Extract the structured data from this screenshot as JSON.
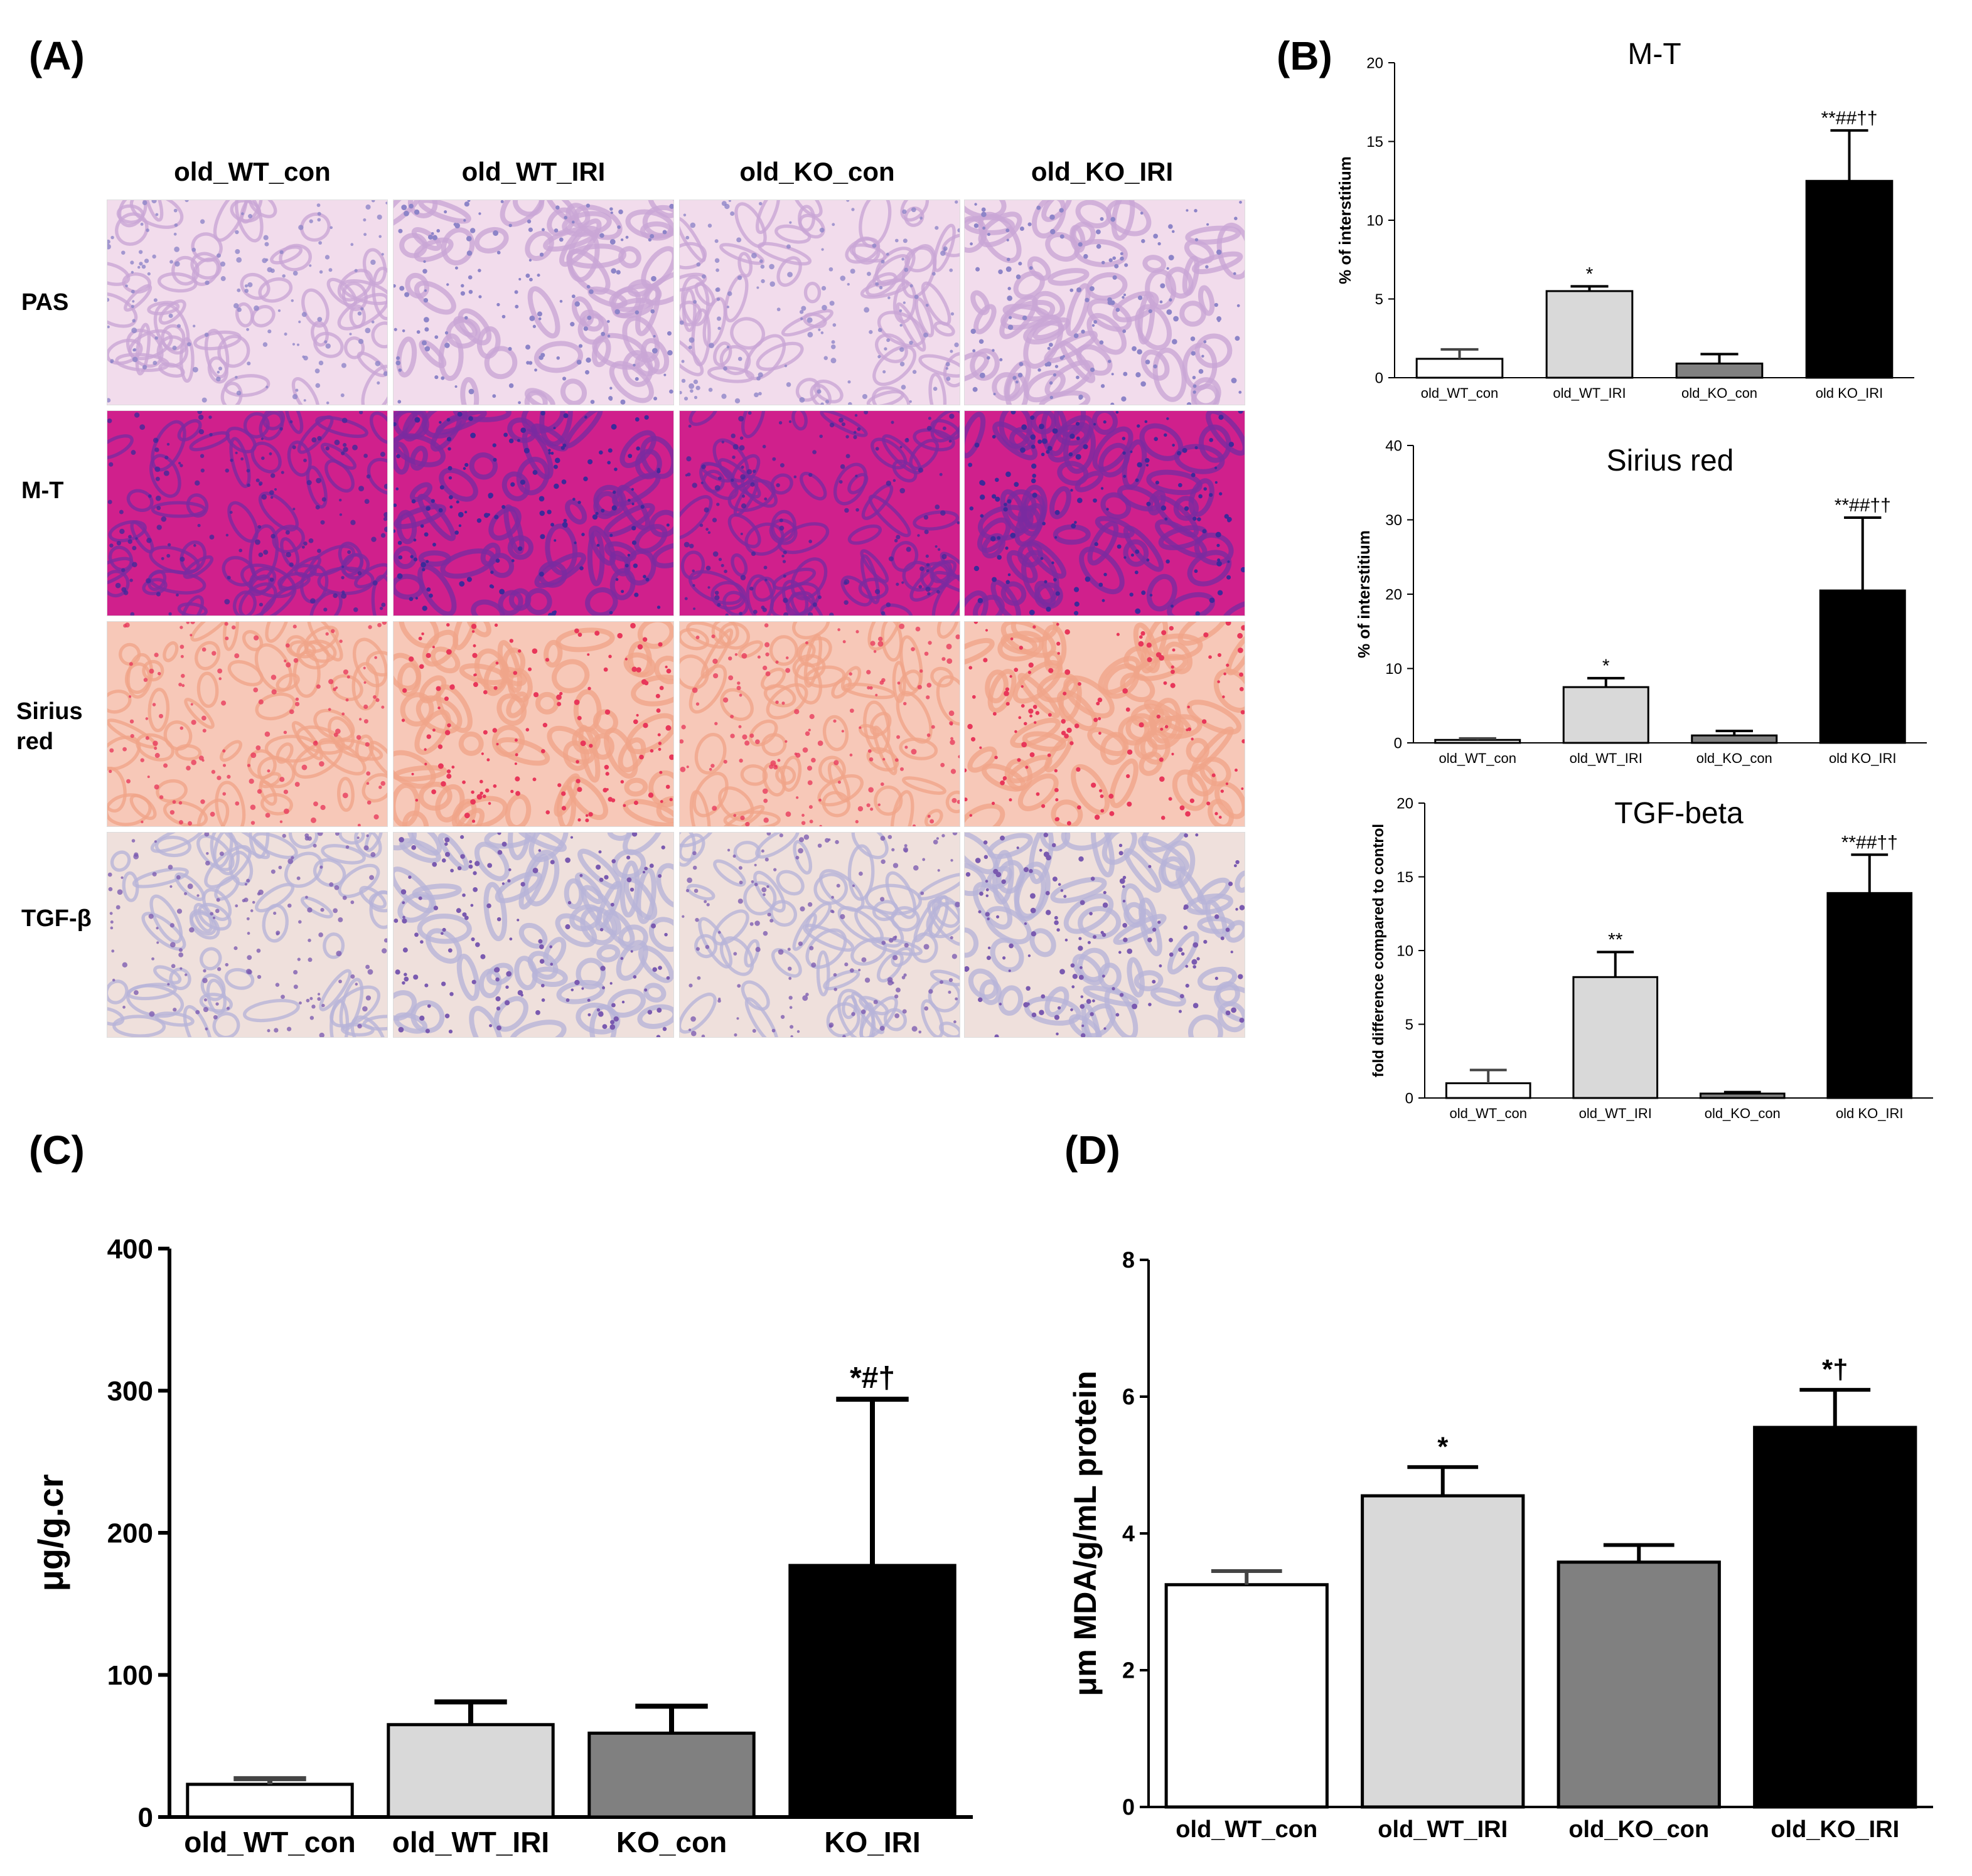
{
  "labels": {
    "a": "(A)",
    "b": "(B)",
    "c": "(C)",
    "d": "(D)"
  },
  "panelA": {
    "columns": [
      "old_WT_con",
      "old_WT_IRI",
      "old_KO_con",
      "old_KO_IRI"
    ],
    "rows": [
      {
        "label": "PAS",
        "tissue": "pas"
      },
      {
        "label": "M-T",
        "tissue": "mt"
      },
      {
        "label": "Sirius red",
        "tissue": "sirius"
      },
      {
        "label": "TGF-β",
        "tissue": "tgf"
      }
    ],
    "colors": {
      "pas": [
        "#f2dcec",
        "#c9a6d6",
        "#8d84c8"
      ],
      "mt": [
        "#d0208c",
        "#7a2aa0",
        "#3c2a9a"
      ],
      "sirius": [
        "#f7c8b8",
        "#f0a58a",
        "#e8375a"
      ],
      "tgf": [
        "#efe0dc",
        "#b8b4d8",
        "#7a5ab0"
      ]
    }
  },
  "chart_data": [
    {
      "id": "B1",
      "type": "bar",
      "title": "M-T",
      "ylabel": "% of interstitium",
      "xlabel": "",
      "ylim": [
        0,
        20
      ],
      "yticks": [
        0,
        5,
        10,
        15,
        20
      ],
      "categories": [
        "old_WT_con",
        "old_WT_IRI",
        "old_KO_con",
        "old KO_IRI"
      ],
      "values": [
        1.2,
        5.5,
        0.9,
        12.5
      ],
      "errors": [
        0.6,
        0.3,
        0.6,
        3.2
      ],
      "annotations": [
        "",
        "*",
        "",
        "**##††"
      ],
      "fills": [
        "#ffffff",
        "#d9d9d9",
        "#808080",
        "#000000"
      ]
    },
    {
      "id": "B2",
      "type": "bar",
      "title": "Sirius red",
      "ylabel": "% of interstitium",
      "xlabel": "",
      "ylim": [
        0,
        40
      ],
      "yticks": [
        0,
        10,
        20,
        30,
        40
      ],
      "categories": [
        "old_WT_con",
        "old_WT_IRI",
        "old_KO_con",
        "old KO_IRI"
      ],
      "values": [
        0.4,
        7.5,
        1.0,
        20.5
      ],
      "errors": [
        0.2,
        1.2,
        0.6,
        9.8
      ],
      "annotations": [
        "",
        "*",
        "",
        "**##††"
      ],
      "fills": [
        "#ffffff",
        "#d9d9d9",
        "#808080",
        "#000000"
      ]
    },
    {
      "id": "B3",
      "type": "bar",
      "title": "TGF-beta",
      "ylabel": "fold difference compared to control",
      "xlabel": "",
      "ylim": [
        0,
        20
      ],
      "yticks": [
        0,
        5,
        10,
        15,
        20
      ],
      "categories": [
        "old_WT_con",
        "old_WT_IRI",
        "old_KO_con",
        "old KO_IRI"
      ],
      "values": [
        1.0,
        8.2,
        0.3,
        13.9
      ],
      "errors": [
        0.9,
        1.7,
        0.1,
        2.6
      ],
      "annotations": [
        "",
        "**",
        "",
        "**##††"
      ],
      "fills": [
        "#ffffff",
        "#d9d9d9",
        "#808080",
        "#000000"
      ]
    },
    {
      "id": "C",
      "type": "bar",
      "title": "",
      "ylabel": "μg/g.cr",
      "xlabel": "",
      "ylim": [
        0,
        400
      ],
      "yticks": [
        0,
        100,
        200,
        300,
        400
      ],
      "categories": [
        "old_WT_con",
        "old_WT_IRI",
        "KO_con",
        "KO_IRI"
      ],
      "values": [
        23,
        65,
        59,
        177
      ],
      "errors": [
        4,
        16,
        19,
        117
      ],
      "annotations": [
        "",
        "",
        "",
        "*#†"
      ],
      "fills": [
        "#ffffff",
        "#d9d9d9",
        "#808080",
        "#000000"
      ]
    },
    {
      "id": "D",
      "type": "bar",
      "title": "",
      "ylabel": "μm MDA/g/mL protein",
      "xlabel": "",
      "ylim": [
        0,
        8
      ],
      "yticks": [
        0,
        2,
        4,
        6,
        8
      ],
      "categories": [
        "old_WT_con",
        "old_WT_IRI",
        "old_KO_con",
        "old_KO_IRI"
      ],
      "values": [
        3.25,
        4.55,
        3.58,
        5.55
      ],
      "errors": [
        0.2,
        0.42,
        0.25,
        0.55
      ],
      "annotations": [
        "",
        "*",
        "",
        "*†"
      ],
      "fills": [
        "#ffffff",
        "#d9d9d9",
        "#808080",
        "#000000"
      ]
    }
  ]
}
